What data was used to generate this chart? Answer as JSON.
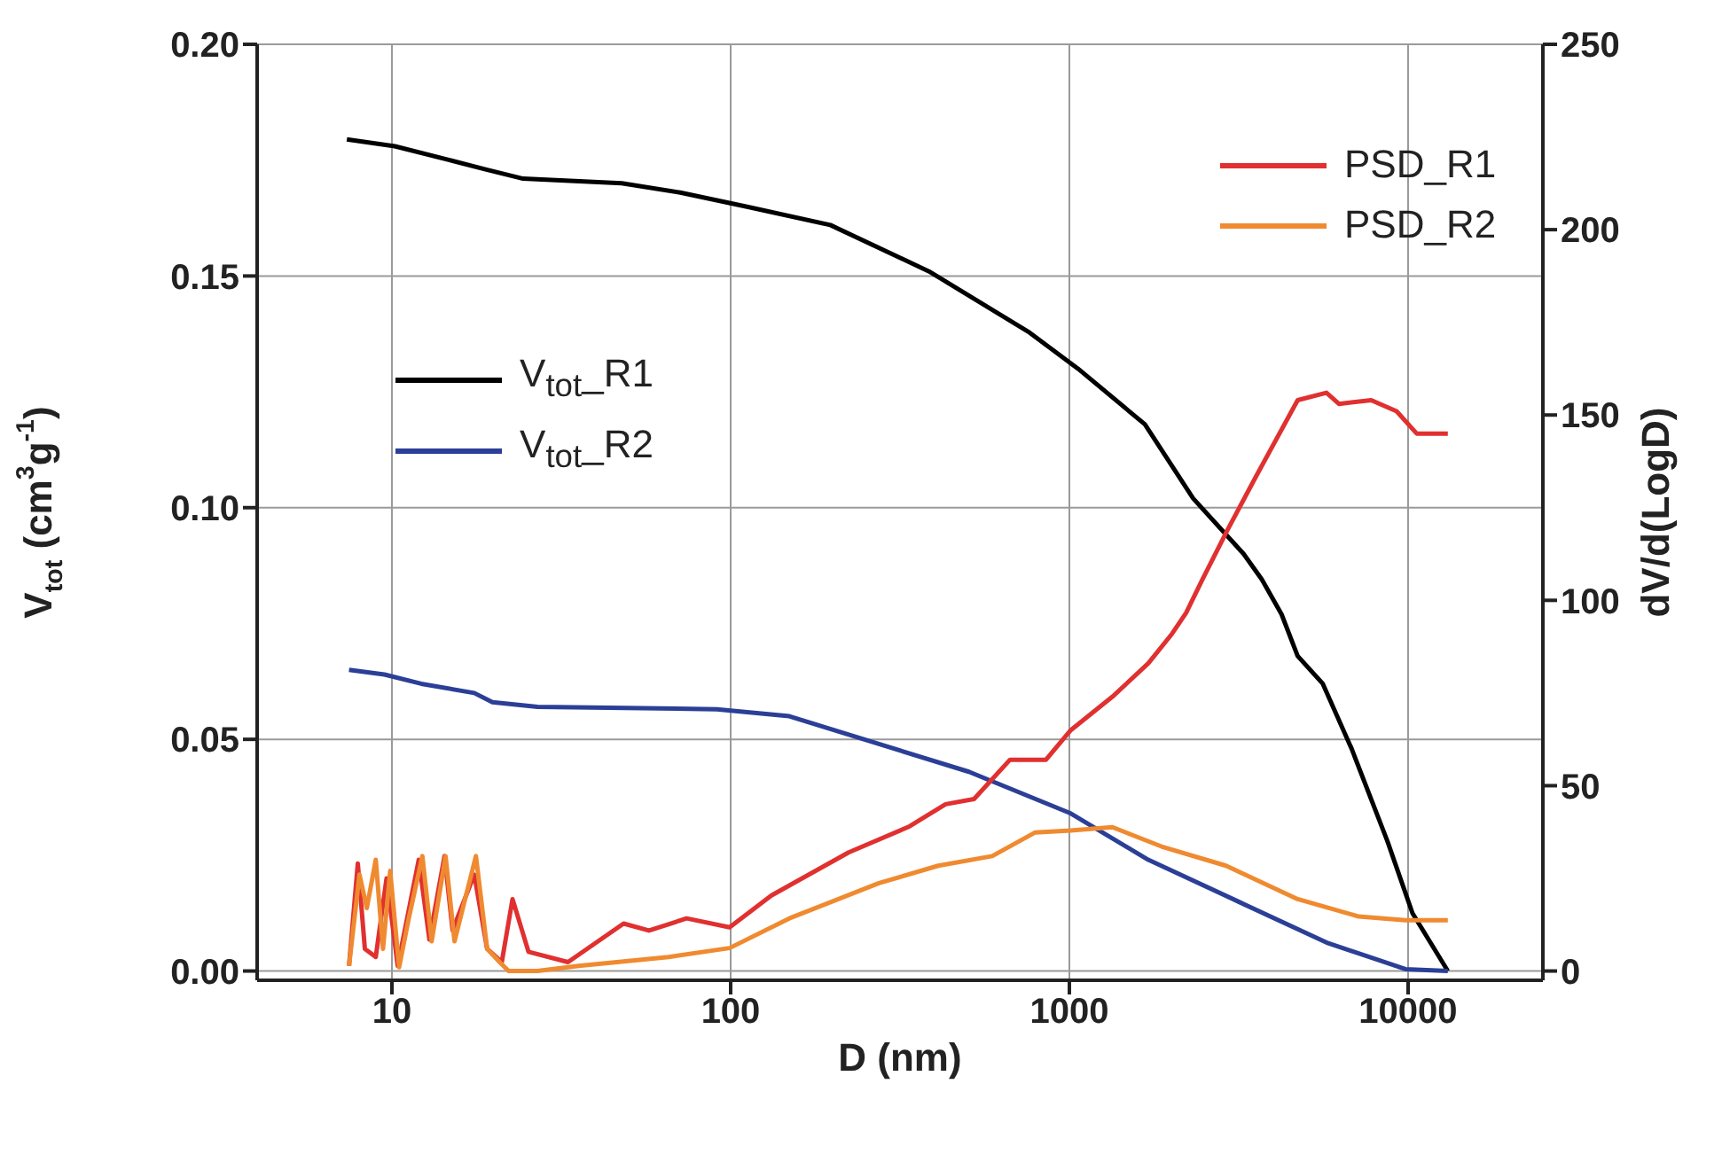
{
  "chart_data": {
    "type": "line",
    "xlabel": "D (nm)",
    "ylabel": "V$_{tot}$ (cm$^{3}$g$^{-1}$)",
    "y2label": "dV/d(LogD)",
    "log": "x",
    "grid": true,
    "legend": "top right",
    "xlim": [
      4,
      25000
    ],
    "xticks": [
      10,
      100,
      1000,
      10000
    ],
    "ylim": [
      -0.002,
      0.2
    ],
    "yticks": [
      {
        "value": 0,
        "label": "0.00"
      },
      {
        "value": 0.05,
        "label": "0.05"
      },
      {
        "value": 0.1,
        "label": "0.10"
      },
      {
        "value": 0.15,
        "label": "0.15"
      },
      {
        "value": 0.2,
        "label": "0.20"
      }
    ],
    "y2lim": [
      -2.5,
      250
    ],
    "y2ticks": [
      0,
      50,
      100,
      150,
      200,
      250
    ],
    "series": [
      {
        "name": "V$_{tot}$_R1",
        "color": "#000000",
        "x": [
          7.36,
          10.2,
          14.8,
          18.9,
          24.4,
          47.7,
          71,
          111,
          197,
          385,
          755,
          1060,
          1670,
          2320,
          3270,
          3700,
          4230,
          4720,
          5600,
          6810,
          8690,
          10300,
          13100
        ],
        "values": [
          0.1795,
          0.178,
          0.175,
          0.173,
          0.171,
          0.17,
          0.168,
          0.165,
          0.161,
          0.151,
          0.138,
          0.13,
          0.118,
          0.102,
          0.09,
          0.0845,
          0.077,
          0.068,
          0.062,
          0.048,
          0.028,
          0.0125,
          0
        ]
      },
      {
        "name": "V$_{tot}$_R2",
        "color": "#2b3f97",
        "x": [
          7.47,
          9.5,
          12.2,
          17.5,
          19.8,
          26.9,
          91,
          149,
          274,
          505,
          1010,
          1710,
          3150,
          5810,
          9820,
          13100
        ],
        "values": [
          0.065,
          0.064,
          0.062,
          0.06,
          0.058,
          0.057,
          0.0565,
          0.055,
          0.049,
          0.043,
          0.034,
          0.024,
          0.015,
          0.006,
          0.0004,
          0
        ]
      },
      {
        "name": "PSD_R1",
        "color": "#e03030",
        "axis": "y2",
        "x": [
          7.47,
          7.93,
          8.32,
          8.96,
          9.64,
          10.4,
          12.0,
          12.9,
          14.3,
          15.1,
          17.5,
          19.1,
          21.1,
          22.7,
          25.3,
          33.1,
          48.3,
          57.4,
          74.1,
          99.3,
          132,
          223,
          337,
          431,
          523,
          668,
          853,
          1010,
          1340,
          1710,
          2010,
          2210,
          2470,
          2930,
          3560,
          4720,
          5740,
          6250,
          7780,
          9250,
          10600,
          13100
        ],
        "values": [
          1.4,
          29,
          6,
          3.8,
          25,
          1.4,
          30,
          8.5,
          31,
          11,
          26,
          6,
          2.4,
          19.4,
          5.2,
          2.4,
          12.8,
          10.9,
          14.2,
          11.8,
          20.4,
          32,
          39,
          45,
          46.4,
          57,
          57,
          65,
          74,
          83,
          91,
          96.6,
          105.6,
          119,
          133.5,
          154,
          156,
          153,
          154,
          151,
          145,
          145
        ]
      },
      {
        "name": "PSD_R2",
        "color": "#f08a30",
        "axis": "y2",
        "x": [
          7.47,
          8.02,
          8.43,
          8.96,
          9.41,
          9.88,
          10.5,
          11.2,
          12.3,
          13.1,
          14.4,
          15.3,
          17.7,
          19.1,
          20.8,
          22.1,
          26.9,
          35.6,
          65.6,
          99.3,
          149,
          274,
          410,
          592,
          793,
          1010,
          1340,
          1870,
          2900,
          4720,
          7150,
          9820,
          13100
        ],
        "values": [
          1.4,
          26,
          17,
          30,
          6,
          27,
          1,
          14,
          31,
          8,
          31,
          8,
          31,
          6,
          2.4,
          0,
          0,
          1.4,
          3.8,
          6.2,
          14.2,
          23.7,
          28.4,
          31,
          37.4,
          37.9,
          38.8,
          33.6,
          28.4,
          19.4,
          14.7,
          13.7,
          13.7
        ]
      }
    ]
  }
}
